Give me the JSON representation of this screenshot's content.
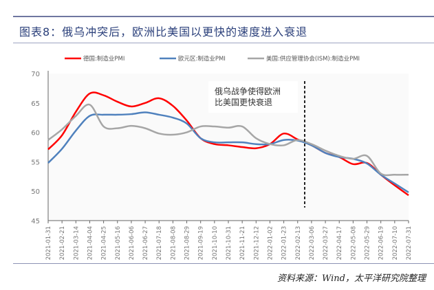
{
  "title": "图表8：俄乌冲突后，欧洲比美国以更快的速度进入衰退",
  "source": "资料来源：Wind，太平洋研究院整理",
  "chart_data": {
    "type": "line",
    "title": "",
    "ylim": [
      45,
      70
    ],
    "yticks": [
      45,
      50,
      55,
      60,
      65,
      70
    ],
    "x": [
      "2021-01-31",
      "2021-02-21",
      "2021-03-14",
      "2021-04-04",
      "2021-04-25",
      "2021-05-16",
      "2021-06-06",
      "2021-06-27",
      "2021-07-18",
      "2021-08-08",
      "2021-08-29",
      "2021-09-19",
      "2021-10-10",
      "2021-10-31",
      "2021-11-21",
      "2021-12-12",
      "2022-01-02",
      "2022-01-23",
      "2022-02-13",
      "2022-03-06",
      "2022-03-27",
      "2022-04-17",
      "2022-05-08",
      "2022-05-29",
      "2022-06-19",
      "2022-07-10",
      "2022-07-31"
    ],
    "legend_position": "top",
    "series": [
      {
        "name": "德国:制造业PMI",
        "color": "#ff0000",
        "values": [
          57.1,
          59.5,
          63.5,
          66.6,
          66.3,
          65.2,
          64.4,
          65.0,
          65.8,
          64.5,
          62.0,
          59.0,
          58.0,
          57.8,
          57.5,
          57.3,
          58.0,
          59.8,
          58.8,
          57.8,
          56.5,
          55.8,
          54.6,
          54.8,
          52.8,
          51.0,
          49.3
        ]
      },
      {
        "name": "欧元区:制造业PMI",
        "color": "#4f81bd",
        "values": [
          54.8,
          57.2,
          60.3,
          62.8,
          63.0,
          63.0,
          63.1,
          63.4,
          63.0,
          62.5,
          61.5,
          59.0,
          58.3,
          58.3,
          58.3,
          58.0,
          58.0,
          58.7,
          58.6,
          57.8,
          56.5,
          55.8,
          55.5,
          54.7,
          52.8,
          51.3,
          49.8
        ]
      },
      {
        "name": "美国:供应管理协会(ISM):制造业PMI",
        "color": "#a6a6a6",
        "values": [
          58.7,
          60.5,
          62.8,
          64.7,
          61.0,
          60.7,
          61.1,
          60.7,
          59.8,
          59.6,
          60.0,
          61.0,
          61.0,
          60.8,
          61.0,
          59.0,
          58.0,
          57.8,
          58.7,
          58.0,
          56.9,
          56.0,
          55.5,
          56.0,
          53.0,
          52.8,
          52.8
        ]
      }
    ],
    "annotation": {
      "text_line1": "俄乌战争使得欧洲",
      "text_line2": "比美国更快衰退",
      "marker": "dashed-vertical-line",
      "between": [
        "2022-02-13",
        "2022-03-06"
      ]
    }
  }
}
